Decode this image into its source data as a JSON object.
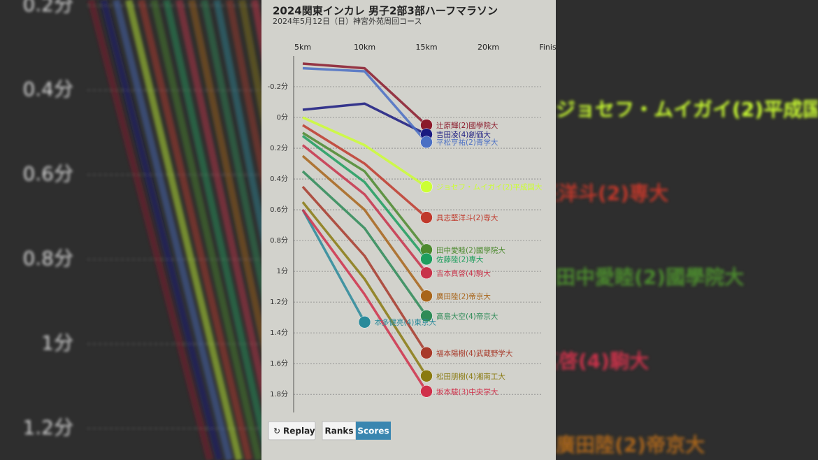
{
  "chart_data": {
    "type": "line",
    "title": "2024関東インカレ 男子2部3部ハーフマラソン",
    "subtitle": "2024年5月12日（日）神宮外苑周回コース",
    "categories": [
      "5km",
      "10km",
      "15km",
      "20km",
      "Finish"
    ],
    "ylim": [
      -0.4,
      1.94
    ],
    "inverted": true,
    "yticks": [
      {
        "value": -0.2,
        "label": "-0.2分"
      },
      {
        "value": 0,
        "label": "0分"
      },
      {
        "value": 0.2,
        "label": "0.2分"
      },
      {
        "value": 0.4,
        "label": "0.4分"
      },
      {
        "value": 0.6,
        "label": "0.6分"
      },
      {
        "value": 0.8,
        "label": "0.8分"
      },
      {
        "value": 1,
        "label": "1分"
      },
      {
        "value": 1.2,
        "label": "1.2分"
      },
      {
        "value": 1.4,
        "label": "1.4分"
      },
      {
        "value": 1.6,
        "label": "1.6分"
      },
      {
        "value": 1.8,
        "label": "1.8分"
      }
    ],
    "grid": true,
    "series": [
      {
        "name": "辻原輝(2)國學院大",
        "color": "#8b1a2b",
        "values": [
          -0.35,
          -0.32,
          0.05,
          null,
          null
        ]
      },
      {
        "name": "吉田凌(4)創価大",
        "color": "#1a1a80",
        "values": [
          -0.05,
          -0.09,
          0.11,
          null,
          null
        ]
      },
      {
        "name": "平松亨祐(2)青学大",
        "color": "#4a6fc4",
        "values": [
          -0.32,
          -0.3,
          0.16,
          null,
          null
        ]
      },
      {
        "name": "ジョセフ・ムイガイ(2)平成国大",
        "color": "#ccff33",
        "values": [
          0,
          0.18,
          0.45,
          null,
          null
        ]
      },
      {
        "name": "具志堅洋斗(2)専大",
        "color": "#c0392b",
        "values": [
          0.05,
          0.3,
          0.65,
          null,
          null
        ]
      },
      {
        "name": "田中愛睦(2)國學院大",
        "color": "#4c8a2e",
        "values": [
          0.1,
          0.35,
          0.86,
          null,
          null
        ]
      },
      {
        "name": "佐藤陸(2)専大",
        "color": "#1e9e5e",
        "values": [
          0.12,
          0.42,
          0.92,
          null,
          null
        ]
      },
      {
        "name": "吉本真啓(4)駒大",
        "color": "#c8334a",
        "values": [
          0.18,
          0.5,
          1.01,
          null,
          null
        ]
      },
      {
        "name": "廣田陸(2)帝京大",
        "color": "#a8651a",
        "values": [
          0.25,
          0.6,
          1.16,
          null,
          null
        ]
      },
      {
        "name": "高島大空(4)帝京大",
        "color": "#2e8b57",
        "values": [
          0.35,
          0.72,
          1.29,
          null,
          null
        ]
      },
      {
        "name": "本多健亮(4)東京大",
        "color": "#2a8a9a",
        "values": [
          0.6,
          1.33,
          null,
          null,
          null
        ]
      },
      {
        "name": "福本陽樹(4)武蔵野学大",
        "color": "#a83a2a",
        "values": [
          0.45,
          0.9,
          1.53,
          null,
          null
        ]
      },
      {
        "name": "松田朋樹(4)湘南工大",
        "color": "#8a7a10",
        "values": [
          0.55,
          1.05,
          1.68,
          null,
          null
        ]
      },
      {
        "name": "坂本駿(3)中央学大",
        "color": "#d0304a",
        "values": [
          0.6,
          1.15,
          1.78,
          null,
          null
        ]
      }
    ],
    "buttons": [
      "Replay",
      "Ranks",
      "Scores"
    ]
  }
}
